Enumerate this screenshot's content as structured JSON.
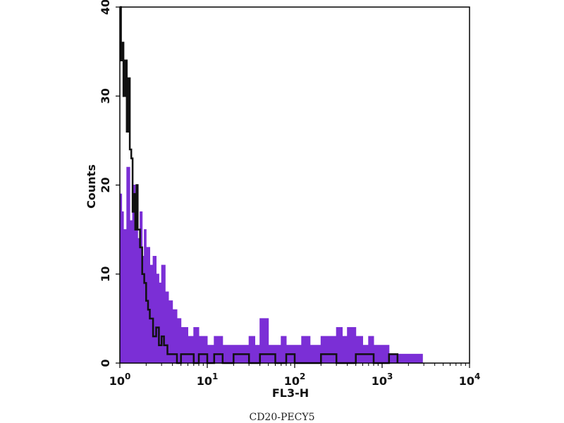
{
  "chart_data": {
    "type": "area",
    "xlabel": "FL3-H",
    "ylabel": "Counts",
    "caption": "CD20-PECY5",
    "x_scale": "log",
    "xlim": [
      1,
      10000
    ],
    "ylim": [
      0,
      40
    ],
    "x_ticks": [
      {
        "base": "10",
        "exp": "0",
        "value": 1
      },
      {
        "base": "10",
        "exp": "1",
        "value": 10
      },
      {
        "base": "10",
        "exp": "2",
        "value": 100
      },
      {
        "base": "10",
        "exp": "3",
        "value": 1000
      },
      {
        "base": "10",
        "exp": "4",
        "value": 10000
      }
    ],
    "y_ticks": [
      "0",
      "10",
      "20",
      "30",
      "40"
    ],
    "grid": false,
    "series": [
      {
        "style": "filled",
        "color": "#7b2fd6",
        "x": [
          1.0,
          1.05,
          1.1,
          1.2,
          1.3,
          1.4,
          1.5,
          1.6,
          1.7,
          1.8,
          1.9,
          2.0,
          2.2,
          2.4,
          2.6,
          2.8,
          3.0,
          3.3,
          3.6,
          4.0,
          4.5,
          5.0,
          6.0,
          7.0,
          8.0,
          10,
          12,
          15,
          20,
          25,
          30,
          35,
          40,
          50,
          60,
          70,
          80,
          100,
          120,
          150,
          200,
          250,
          300,
          350,
          400,
          500,
          600,
          700,
          800,
          1000,
          1200,
          1500,
          2000,
          2500,
          2900
        ],
        "y": [
          19,
          17,
          15,
          22,
          16,
          20,
          18,
          14,
          17,
          12,
          15,
          13,
          11,
          12,
          10,
          9,
          11,
          8,
          7,
          6,
          5,
          4,
          3,
          4,
          3,
          2,
          3,
          2,
          2,
          2,
          3,
          2,
          5,
          2,
          2,
          3,
          2,
          2,
          3,
          2,
          3,
          3,
          4,
          3,
          4,
          3,
          2,
          3,
          2,
          2,
          1,
          1,
          1,
          1,
          0
        ]
      },
      {
        "style": "line",
        "color": "#111111",
        "x": [
          1.0,
          1.03,
          1.06,
          1.1,
          1.15,
          1.2,
          1.25,
          1.3,
          1.35,
          1.4,
          1.45,
          1.5,
          1.55,
          1.6,
          1.7,
          1.8,
          1.9,
          2.0,
          2.1,
          2.2,
          2.4,
          2.6,
          2.8,
          3.0,
          3.2,
          3.5,
          4.0,
          4.5,
          5.0,
          6.0,
          7.0,
          8.0,
          10,
          12,
          15,
          20,
          30,
          40,
          60,
          80,
          100,
          150,
          200,
          300,
          500,
          800,
          1200,
          1500
        ],
        "y": [
          40,
          34,
          36,
          30,
          34,
          26,
          32,
          24,
          23,
          17,
          19,
          15,
          20,
          15,
          13,
          10,
          9,
          7,
          6,
          5,
          3,
          4,
          2,
          3,
          2,
          1,
          1,
          0,
          1,
          1,
          0,
          1,
          0,
          1,
          0,
          1,
          0,
          1,
          0,
          1,
          0,
          0,
          1,
          0,
          1,
          0,
          1,
          0
        ]
      }
    ]
  }
}
